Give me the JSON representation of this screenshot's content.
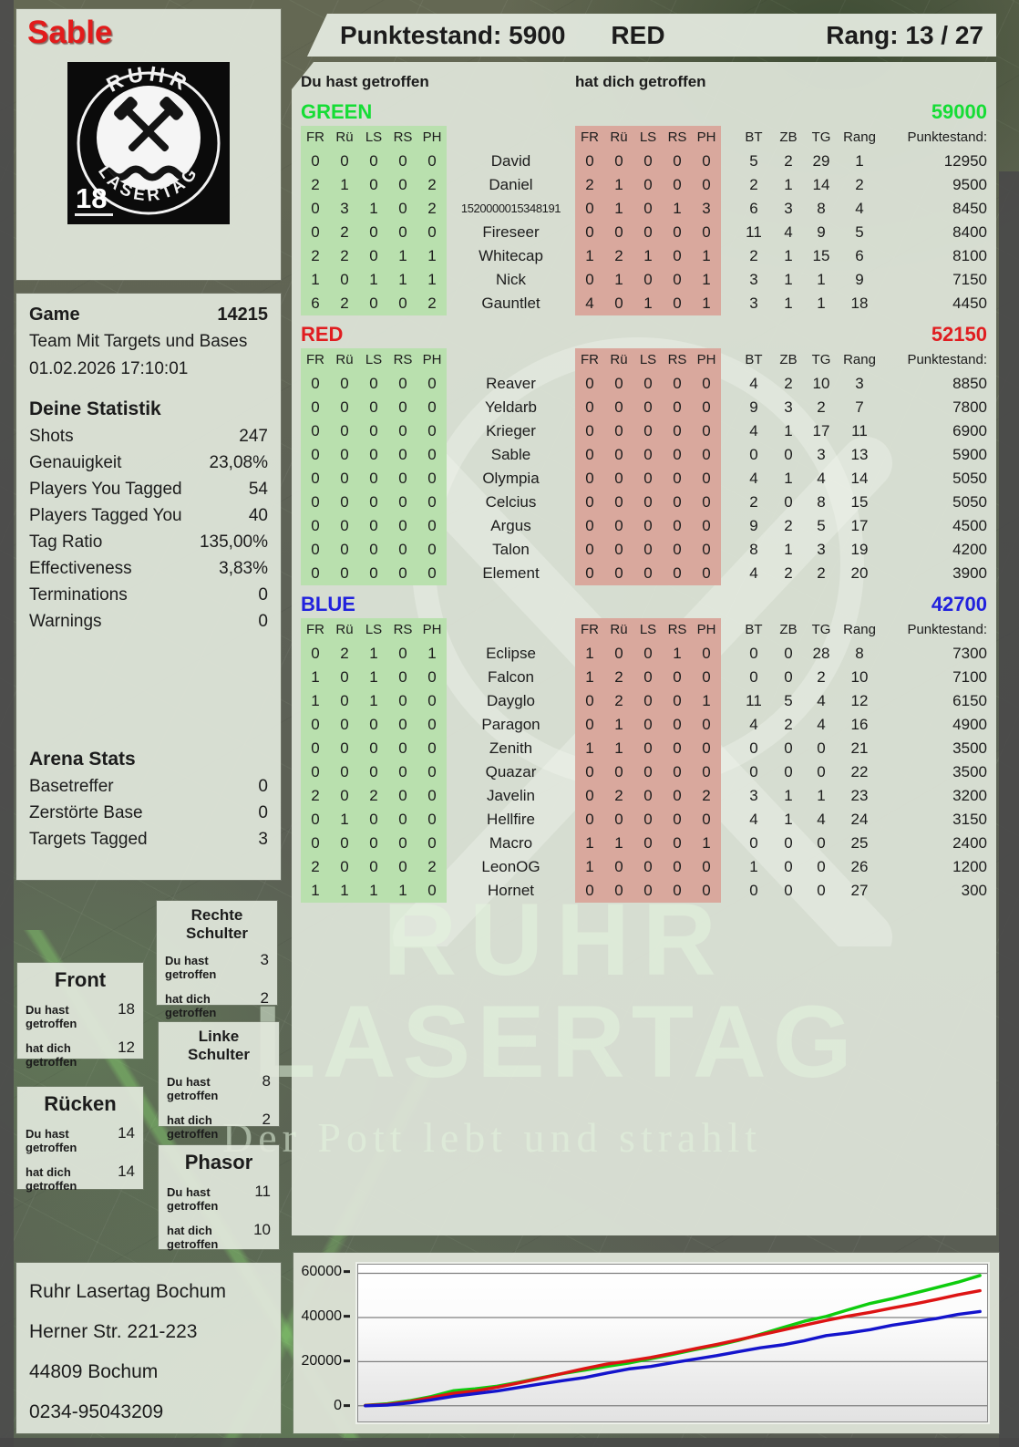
{
  "player_card": {
    "name": "Sable",
    "logo_top": "RUHR",
    "logo_bottom": "LASERTAG",
    "logo_age": "18"
  },
  "scoreboard_header": {
    "punktestand": "Punktestand: 5900",
    "team": "RED",
    "rang": "Rang: 13 / 27"
  },
  "hit_headers": {
    "you": "Du hast getroffen",
    "them": "hat dich getroffen"
  },
  "table": {
    "hit_cols": [
      "FR",
      "Rü",
      "LS",
      "RS",
      "PH"
    ],
    "stat_cols": [
      "BT",
      "ZB",
      "TG",
      "Rang",
      "Punktestand:"
    ]
  },
  "game_info": {
    "label": "Game",
    "number": "14215",
    "mode": "Team Mit Targets und Bases",
    "datetime": "01.02.2026 17:10:01"
  },
  "your_stats": {
    "title": "Deine Statistik",
    "rows": [
      [
        "Shots",
        "247"
      ],
      [
        "Genauigkeit",
        "23,08%"
      ],
      [
        "Players You Tagged",
        "54"
      ],
      [
        "Players Tagged You",
        "40"
      ],
      [
        "Tag Ratio",
        "135,00%"
      ],
      [
        "Effectiveness",
        "3,83%"
      ],
      [
        "Terminations",
        "0"
      ],
      [
        "Warnings",
        "0"
      ]
    ]
  },
  "arena_stats": {
    "title": "Arena Stats",
    "rows": [
      [
        "Basetreffer",
        "0"
      ],
      [
        "Zerstörte Base",
        "0"
      ],
      [
        "Targets Tagged",
        "3"
      ]
    ]
  },
  "body_part_row_labels": {
    "you": "Du hast getroffen",
    "them": "hat dich getroffen"
  },
  "body_parts": [
    {
      "title": "Rechte Schulter",
      "you": "3",
      "them": "2"
    },
    {
      "title": "Front",
      "you": "18",
      "them": "12"
    },
    {
      "title": "Linke Schulter",
      "you": "8",
      "them": "2"
    },
    {
      "title": "Rücken",
      "you": "14",
      "them": "14"
    },
    {
      "title": "Phasor",
      "you": "11",
      "them": "10"
    }
  ],
  "address": [
    "Ruhr Lasertag Bochum",
    "Herner Str. 221-223",
    "44809 Bochum",
    "0234-95043209"
  ],
  "watermark": {
    "line1": "RUHR",
    "line2": "LASERTAG",
    "slogan": "Der Pott lebt und strahlt"
  },
  "teams": [
    {
      "name": "GREEN",
      "color": "#15dd35",
      "score": "59000",
      "rows": [
        {
          "you": [
            0,
            0,
            0,
            0,
            0
          ],
          "name": "David",
          "them": [
            0,
            0,
            0,
            0,
            0
          ],
          "stats": [
            5,
            2,
            29,
            1
          ],
          "punkte": "12950"
        },
        {
          "you": [
            2,
            1,
            0,
            0,
            2
          ],
          "name": "Daniel",
          "them": [
            2,
            1,
            0,
            0,
            0
          ],
          "stats": [
            2,
            1,
            14,
            2
          ],
          "punkte": "9500"
        },
        {
          "you": [
            0,
            3,
            1,
            0,
            2
          ],
          "name": "1520000015348191",
          "them": [
            0,
            1,
            0,
            1,
            3
          ],
          "stats": [
            6,
            3,
            8,
            4
          ],
          "punkte": "8450"
        },
        {
          "you": [
            0,
            2,
            0,
            0,
            0
          ],
          "name": "Fireseer",
          "them": [
            0,
            0,
            0,
            0,
            0
          ],
          "stats": [
            11,
            4,
            9,
            5
          ],
          "punkte": "8400"
        },
        {
          "you": [
            2,
            2,
            0,
            1,
            1
          ],
          "name": "Whitecap",
          "them": [
            1,
            2,
            1,
            0,
            1
          ],
          "stats": [
            2,
            1,
            15,
            6
          ],
          "punkte": "8100"
        },
        {
          "you": [
            1,
            0,
            1,
            1,
            1
          ],
          "name": "Nick",
          "them": [
            0,
            1,
            0,
            0,
            1
          ],
          "stats": [
            3,
            1,
            1,
            9
          ],
          "punkte": "7150"
        },
        {
          "you": [
            6,
            2,
            0,
            0,
            2
          ],
          "name": "Gauntlet",
          "them": [
            4,
            0,
            1,
            0,
            1
          ],
          "stats": [
            3,
            1,
            1,
            18
          ],
          "punkte": "4450"
        }
      ]
    },
    {
      "name": "RED",
      "color": "#e01d20",
      "score": "52150",
      "rows": [
        {
          "you": [
            0,
            0,
            0,
            0,
            0
          ],
          "name": "Reaver",
          "them": [
            0,
            0,
            0,
            0,
            0
          ],
          "stats": [
            4,
            2,
            10,
            3
          ],
          "punkte": "8850"
        },
        {
          "you": [
            0,
            0,
            0,
            0,
            0
          ],
          "name": "Yeldarb",
          "them": [
            0,
            0,
            0,
            0,
            0
          ],
          "stats": [
            9,
            3,
            2,
            7
          ],
          "punkte": "7800"
        },
        {
          "you": [
            0,
            0,
            0,
            0,
            0
          ],
          "name": "Krieger",
          "them": [
            0,
            0,
            0,
            0,
            0
          ],
          "stats": [
            4,
            1,
            17,
            11
          ],
          "punkte": "6900"
        },
        {
          "you": [
            0,
            0,
            0,
            0,
            0
          ],
          "name": "Sable",
          "them": [
            0,
            0,
            0,
            0,
            0
          ],
          "stats": [
            0,
            0,
            3,
            13
          ],
          "punkte": "5900"
        },
        {
          "you": [
            0,
            0,
            0,
            0,
            0
          ],
          "name": "Olympia",
          "them": [
            0,
            0,
            0,
            0,
            0
          ],
          "stats": [
            4,
            1,
            4,
            14
          ],
          "punkte": "5050"
        },
        {
          "you": [
            0,
            0,
            0,
            0,
            0
          ],
          "name": "Celcius",
          "them": [
            0,
            0,
            0,
            0,
            0
          ],
          "stats": [
            2,
            0,
            8,
            15
          ],
          "punkte": "5050"
        },
        {
          "you": [
            0,
            0,
            0,
            0,
            0
          ],
          "name": "Argus",
          "them": [
            0,
            0,
            0,
            0,
            0
          ],
          "stats": [
            9,
            2,
            5,
            17
          ],
          "punkte": "4500"
        },
        {
          "you": [
            0,
            0,
            0,
            0,
            0
          ],
          "name": "Talon",
          "them": [
            0,
            0,
            0,
            0,
            0
          ],
          "stats": [
            8,
            1,
            3,
            19
          ],
          "punkte": "4200"
        },
        {
          "you": [
            0,
            0,
            0,
            0,
            0
          ],
          "name": "Element",
          "them": [
            0,
            0,
            0,
            0,
            0
          ],
          "stats": [
            4,
            2,
            2,
            20
          ],
          "punkte": "3900"
        }
      ]
    },
    {
      "name": "BLUE",
      "color": "#2121dd",
      "score": "42700",
      "rows": [
        {
          "you": [
            0,
            2,
            1,
            0,
            1
          ],
          "name": "Eclipse",
          "them": [
            1,
            0,
            0,
            1,
            0
          ],
          "stats": [
            0,
            0,
            28,
            8
          ],
          "punkte": "7300"
        },
        {
          "you": [
            1,
            0,
            1,
            0,
            0
          ],
          "name": "Falcon",
          "them": [
            1,
            2,
            0,
            0,
            0
          ],
          "stats": [
            0,
            0,
            2,
            10
          ],
          "punkte": "7100"
        },
        {
          "you": [
            1,
            0,
            1,
            0,
            0
          ],
          "name": "Dayglo",
          "them": [
            0,
            2,
            0,
            0,
            1
          ],
          "stats": [
            11,
            5,
            4,
            12
          ],
          "punkte": "6150"
        },
        {
          "you": [
            0,
            0,
            0,
            0,
            0
          ],
          "name": "Paragon",
          "them": [
            0,
            1,
            0,
            0,
            0
          ],
          "stats": [
            4,
            2,
            4,
            16
          ],
          "punkte": "4900"
        },
        {
          "you": [
            0,
            0,
            0,
            0,
            0
          ],
          "name": "Zenith",
          "them": [
            1,
            1,
            0,
            0,
            0
          ],
          "stats": [
            0,
            0,
            0,
            21
          ],
          "punkte": "3500"
        },
        {
          "you": [
            0,
            0,
            0,
            0,
            0
          ],
          "name": "Quazar",
          "them": [
            0,
            0,
            0,
            0,
            0
          ],
          "stats": [
            0,
            0,
            0,
            22
          ],
          "punkte": "3500"
        },
        {
          "you": [
            2,
            0,
            2,
            0,
            0
          ],
          "name": "Javelin",
          "them": [
            0,
            2,
            0,
            0,
            2
          ],
          "stats": [
            3,
            1,
            1,
            23
          ],
          "punkte": "3200"
        },
        {
          "you": [
            0,
            1,
            0,
            0,
            0
          ],
          "name": "Hellfire",
          "them": [
            0,
            0,
            0,
            0,
            0
          ],
          "stats": [
            4,
            1,
            4,
            24
          ],
          "punkte": "3150"
        },
        {
          "you": [
            0,
            0,
            0,
            0,
            0
          ],
          "name": "Macro",
          "them": [
            1,
            1,
            0,
            0,
            1
          ],
          "stats": [
            0,
            0,
            0,
            25
          ],
          "punkte": "2400"
        },
        {
          "you": [
            2,
            0,
            0,
            0,
            2
          ],
          "name": "LeonOG",
          "them": [
            1,
            0,
            0,
            0,
            0
          ],
          "stats": [
            1,
            0,
            0,
            26
          ],
          "punkte": "1200"
        },
        {
          "you": [
            1,
            1,
            1,
            1,
            0
          ],
          "name": "Hornet",
          "them": [
            0,
            0,
            0,
            0,
            0
          ],
          "stats": [
            0,
            0,
            0,
            27
          ],
          "punkte": "300"
        }
      ]
    }
  ],
  "chart_data": {
    "type": "line",
    "title": "",
    "xlabel": "",
    "ylabel": "",
    "ylim": [
      0,
      60000
    ],
    "y_ticks": [
      0,
      20000,
      40000,
      60000
    ],
    "grid": true,
    "legend_position": "none",
    "x_description": "Spielverlauf (Zeit), 29 gleichmäßige Samples",
    "series": [
      {
        "name": "GREEN",
        "color": "#0ecc0e",
        "values": [
          200,
          900,
          2300,
          4200,
          6800,
          7700,
          8900,
          10700,
          12700,
          14600,
          16200,
          17900,
          19400,
          21300,
          23300,
          25400,
          27300,
          29600,
          32400,
          35400,
          38300,
          40500,
          43500,
          46400,
          48500,
          51000,
          53500,
          56000,
          59000
        ]
      },
      {
        "name": "RED",
        "color": "#dd1414",
        "values": [
          100,
          600,
          1900,
          3700,
          5600,
          6700,
          8400,
          10400,
          12500,
          14700,
          16900,
          18900,
          20300,
          21900,
          23800,
          25800,
          27800,
          29900,
          32100,
          34300,
          36500,
          38700,
          40600,
          42300,
          44300,
          46100,
          48100,
          50300,
          52150
        ]
      },
      {
        "name": "BLUE",
        "color": "#1414cc",
        "values": [
          0,
          300,
          1300,
          2700,
          4300,
          5500,
          6700,
          8300,
          9900,
          11400,
          12800,
          14800,
          16700,
          17800,
          19500,
          21100,
          22700,
          24500,
          26300,
          27600,
          29500,
          31800,
          33000,
          34500,
          36500,
          38000,
          39500,
          41400,
          42700
        ]
      }
    ]
  }
}
